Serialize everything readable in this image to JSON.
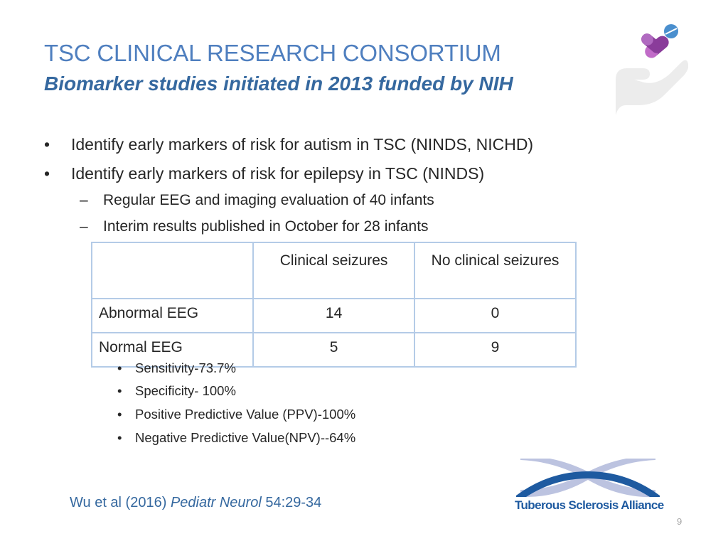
{
  "title": "TSC CLINICAL RESEARCH CONSORTIUM",
  "subtitle": "Biomarker studies initiated in 2013 funded by NIH",
  "bullets": [
    "Identify early markers of risk for autism in TSC (NINDS, NICHD)",
    "Identify early markers of risk for epilepsy in TSC (NINDS)"
  ],
  "sub_bullets": [
    "Regular EEG and imaging evaluation of 40 infants",
    "Interim results published in October for 28 infants"
  ],
  "table": {
    "headers": [
      "",
      "Clinical seizures",
      "No clinical seizures"
    ],
    "rows": [
      [
        "Abnormal EEG",
        "14",
        "0"
      ],
      [
        "Normal EEG",
        "5",
        "9"
      ]
    ]
  },
  "stats": [
    "Sensitivity-73.7%",
    "Specificity- 100%",
    "Positive Predictive Value (PPV)-100%",
    "Negative Predictive Value(NPV)--64%"
  ],
  "citation": {
    "prefix": "Wu et al (2016) ",
    "journal": "Pediatr Neurol",
    "suffix": " 54:29-34"
  },
  "logo": {
    "text": "Tuberous Sclerosis Alliance"
  },
  "page_number": "9",
  "colors": {
    "title": "#4f7fbf",
    "accent": "#35689f",
    "table_border": "#b4cbe7",
    "logo_blue": "#1e5aa0",
    "logo_lavender": "#bcc3e0",
    "pill_purple": "#8a3c9a",
    "pill_blue": "#4a8fce"
  }
}
